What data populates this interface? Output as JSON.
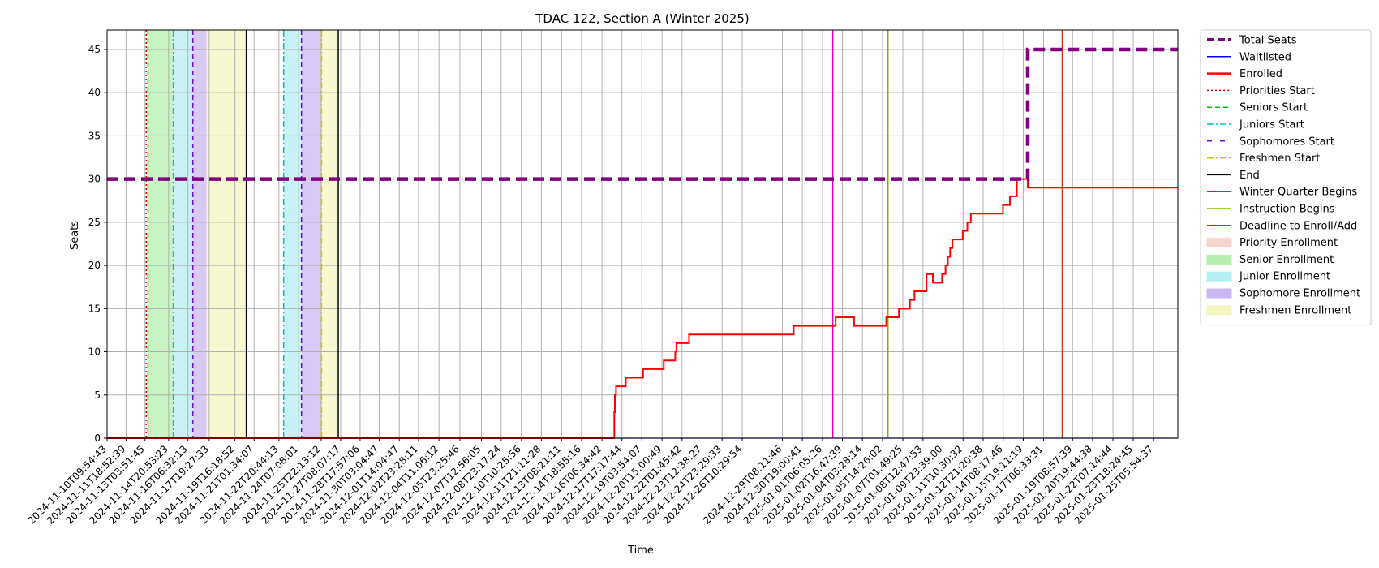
{
  "chart_data": {
    "type": "line",
    "title": "TDAC 122, Section A (Winter 2025)",
    "xlabel": "Time",
    "ylabel": "Seats",
    "xlim": [
      "2024-11-10T09:54:43",
      "2025-01-27T00:00:00"
    ],
    "ylim": [
      0,
      47.25
    ],
    "yticks": [
      0,
      5,
      10,
      15,
      20,
      25,
      30,
      35,
      40,
      45
    ],
    "xticks": [
      "2024-11-10T09:54:43",
      "2024-11-11T18:52:39",
      "2024-11-13T03:51:45",
      "2024-11-14T20:53:23",
      "2024-11-16T06:32:13",
      "2024-11-17T19:27:33",
      "2024-11-19T16:18:52",
      "2024-11-21T01:34:07",
      "2024-11-22T20:44:13",
      "2024-11-24T07:08:01",
      "2024-11-25T22:13:12",
      "2024-11-27T08:07:17",
      "2024-11-28T17:57:06",
      "2024-11-30T03:04:47",
      "2024-12-01T14:04:47",
      "2024-12-02T23:28:11",
      "2024-12-04T11:06:12",
      "2024-12-05T23:25:46",
      "2024-12-07T12:56:05",
      "2024-12-08T23:17:24",
      "2024-12-10T10:25:56",
      "2024-12-11T21:11:28",
      "2024-12-13T08:21:11",
      "2024-12-14T18:55:16",
      "2024-12-16T06:34:42",
      "2024-12-17T17:17:44",
      "2024-12-19T03:54:07",
      "2024-12-20T15:00:49",
      "2024-12-22T01:45:42",
      "2024-12-23T12:38:27",
      "2024-12-24T23:29:33",
      "2024-12-26T10:29:54",
      "2024-12-29T08:11:46",
      "2024-12-30T19:00:41",
      "2025-01-01T06:05:26",
      "2025-01-02T16:47:39",
      "2025-01-04T03:28:14",
      "2025-01-05T14:26:02",
      "2025-01-07T01:49:25",
      "2025-01-08T12:47:53",
      "2025-01-09T23:39:00",
      "2025-01-11T10:30:32",
      "2025-01-12T21:20:38",
      "2025-01-14T08:17:46",
      "2025-01-15T19:11:19",
      "2025-01-17T06:33:31",
      "2025-01-19T08:57:39",
      "2025-01-20T19:44:38",
      "2025-01-22T07:14:44",
      "2025-01-23T18:24:45",
      "2025-01-25T05:54:37"
    ],
    "grid": true,
    "legend_placement": "outside upper right",
    "series": [
      {
        "name": "Total Seats",
        "color": "#800080",
        "style": "dashed",
        "points": [
          [
            "2024-11-10T09:54:43",
            30
          ],
          [
            "2025-01-16T03:00:00",
            30
          ],
          [
            "2025-01-16T03:00:00",
            45
          ],
          [
            "2025-01-27T00:00:00",
            45
          ]
        ]
      },
      {
        "name": "Waitlisted",
        "color": "#0000ff",
        "style": "solid",
        "points": [
          [
            "2024-11-10T09:54:43",
            0
          ],
          [
            "2025-01-27T00:00:00",
            0
          ]
        ]
      },
      {
        "name": "Enrolled",
        "color": "#ff0000",
        "style": "solid",
        "points": [
          [
            "2024-11-10T09:54:43",
            0
          ],
          [
            "2024-12-17T04:00:00",
            0
          ],
          [
            "2024-12-17T04:00:00",
            3
          ],
          [
            "2024-12-17T05:00:00",
            3
          ],
          [
            "2024-12-17T05:00:00",
            5
          ],
          [
            "2024-12-17T07:00:00",
            5
          ],
          [
            "2024-12-17T07:00:00",
            6
          ],
          [
            "2024-12-18T00:00:00",
            6
          ],
          [
            "2024-12-18T00:00:00",
            7
          ],
          [
            "2024-12-19T06:00:00",
            7
          ],
          [
            "2024-12-19T06:00:00",
            8
          ],
          [
            "2024-12-20T18:00:00",
            8
          ],
          [
            "2024-12-20T18:00:00",
            9
          ],
          [
            "2024-12-21T14:00:00",
            9
          ],
          [
            "2024-12-21T14:00:00",
            10
          ],
          [
            "2024-12-21T16:00:00",
            10
          ],
          [
            "2024-12-21T16:00:00",
            11
          ],
          [
            "2024-12-22T14:00:00",
            11
          ],
          [
            "2024-12-22T14:00:00",
            12
          ],
          [
            "2024-12-30T04:00:00",
            12
          ],
          [
            "2024-12-30T04:00:00",
            13
          ],
          [
            "2025-01-02T05:00:00",
            13
          ],
          [
            "2025-01-02T05:00:00",
            14
          ],
          [
            "2025-01-03T13:00:00",
            14
          ],
          [
            "2025-01-03T13:00:00",
            13
          ],
          [
            "2025-01-05T21:00:00",
            13
          ],
          [
            "2025-01-05T21:00:00",
            14
          ],
          [
            "2025-01-06T19:00:00",
            14
          ],
          [
            "2025-01-06T19:00:00",
            15
          ],
          [
            "2025-01-07T14:00:00",
            15
          ],
          [
            "2025-01-07T14:00:00",
            16
          ],
          [
            "2025-01-07T22:00:00",
            16
          ],
          [
            "2025-01-07T22:00:00",
            17
          ],
          [
            "2025-01-08T19:00:00",
            17
          ],
          [
            "2025-01-08T19:00:00",
            19
          ],
          [
            "2025-01-09T06:00:00",
            19
          ],
          [
            "2025-01-09T06:00:00",
            18
          ],
          [
            "2025-01-09T22:00:00",
            18
          ],
          [
            "2025-01-09T22:00:00",
            19
          ],
          [
            "2025-01-10T04:00:00",
            19
          ],
          [
            "2025-01-10T04:00:00",
            20
          ],
          [
            "2025-01-10T08:00:00",
            20
          ],
          [
            "2025-01-10T08:00:00",
            21
          ],
          [
            "2025-01-10T12:00:00",
            21
          ],
          [
            "2025-01-10T12:00:00",
            22
          ],
          [
            "2025-01-10T16:00:00",
            22
          ],
          [
            "2025-01-10T16:00:00",
            23
          ],
          [
            "2025-01-11T10:00:00",
            23
          ],
          [
            "2025-01-11T10:00:00",
            24
          ],
          [
            "2025-01-11T18:00:00",
            24
          ],
          [
            "2025-01-11T18:00:00",
            25
          ],
          [
            "2025-01-12T00:00:00",
            25
          ],
          [
            "2025-01-12T00:00:00",
            26
          ],
          [
            "2025-01-14T08:00:00",
            26
          ],
          [
            "2025-01-14T08:00:00",
            27
          ],
          [
            "2025-01-14T20:00:00",
            27
          ],
          [
            "2025-01-14T20:00:00",
            28
          ],
          [
            "2025-01-15T08:00:00",
            28
          ],
          [
            "2025-01-15T08:00:00",
            30
          ],
          [
            "2025-01-16T03:00:00",
            30
          ],
          [
            "2025-01-16T03:00:00",
            29
          ],
          [
            "2025-01-27T00:00:00",
            29
          ]
        ]
      }
    ],
    "events": [
      {
        "name": "Priorities Start",
        "x": "2024-11-13T06:00:00",
        "color": "#ff0000",
        "style": "dotted"
      },
      {
        "name": "Seniors Start",
        "x": "2024-11-13T09:00:00",
        "color": "#00c000",
        "style": "dashed"
      },
      {
        "name": "Juniors Start",
        "x": "2024-11-15T05:00:00",
        "color": "#00bfbf",
        "style": "dashdot"
      },
      {
        "name": "Sophomores Start",
        "x": "2024-11-16T15:00:00",
        "color": "#6a0dcc",
        "style": "dashed"
      },
      {
        "name": "End",
        "x": "2024-11-20T12:00:00",
        "color": "#000000",
        "style": "solid"
      },
      {
        "name": "Juniors Start",
        "x": "2024-11-23T05:00:00",
        "color": "#00bfbf",
        "style": "dashdot"
      },
      {
        "name": "Sophomores Start",
        "x": "2024-11-24T12:00:00",
        "color": "#6a0dcc",
        "style": "dashed"
      },
      {
        "name": "Freshmen Start",
        "x": "2024-11-25T23:00:00",
        "color": "#d4c000",
        "style": "dashdot"
      },
      {
        "name": "End",
        "x": "2024-11-27T04:00:00",
        "color": "#000000",
        "style": "solid"
      },
      {
        "name": "Winter Quarter Begins",
        "x": "2025-01-02T00:00:00",
        "color": "#e000c0",
        "style": "solid"
      },
      {
        "name": "Instruction Begins",
        "x": "2025-01-06T00:00:00",
        "color": "#7cb800",
        "style": "solid"
      },
      {
        "name": "Deadline to Enroll/Add",
        "x": "2025-01-18T15:00:00",
        "color": "#d43000",
        "style": "solid"
      }
    ],
    "periods": [
      {
        "name": "Senior Enrollment",
        "start": "2024-11-13T09:00:00",
        "end": "2024-11-15T05:00:00",
        "color": "#b5f0b0"
      },
      {
        "name": "Junior Enrollment",
        "start": "2024-11-15T05:00:00",
        "end": "2024-11-16T15:00:00",
        "color": "#b8eef2"
      },
      {
        "name": "Sophomore Enrollment",
        "start": "2024-11-16T15:00:00",
        "end": "2024-11-17T15:00:00",
        "color": "#cbb7f2"
      },
      {
        "name": "Freshmen Enrollment",
        "start": "2024-11-17T15:00:00",
        "end": "2024-11-20T12:00:00",
        "color": "#f5f5c0"
      },
      {
        "name": "Junior Enrollment",
        "start": "2024-11-23T05:00:00",
        "end": "2024-11-24T12:00:00",
        "color": "#b8eef2"
      },
      {
        "name": "Sophomore Enrollment",
        "start": "2024-11-24T12:00:00",
        "end": "2024-11-25T23:00:00",
        "color": "#cbb7f2"
      },
      {
        "name": "Freshmen Enrollment",
        "start": "2024-11-25T23:00:00",
        "end": "2024-11-27T04:00:00",
        "color": "#f5f5c0"
      }
    ],
    "legend": [
      {
        "label": "Total Seats",
        "kind": "line",
        "color": "#800080",
        "style": "dashed-thick"
      },
      {
        "label": "Waitlisted",
        "kind": "line",
        "color": "#0000ff",
        "style": "solid"
      },
      {
        "label": "Enrolled",
        "kind": "line",
        "color": "#ff0000",
        "style": "solid-thick"
      },
      {
        "label": "Priorities Start",
        "kind": "line",
        "color": "#ff0000",
        "style": "dotted"
      },
      {
        "label": "Seniors Start",
        "kind": "line",
        "color": "#00c000",
        "style": "dashed"
      },
      {
        "label": "Juniors Start",
        "kind": "line",
        "color": "#00bfbf",
        "style": "dashdot"
      },
      {
        "label": "Sophomores Start",
        "kind": "line",
        "color": "#6a0dcc",
        "style": "dashed-sparse"
      },
      {
        "label": "Freshmen Start",
        "kind": "line",
        "color": "#d4c000",
        "style": "dashdot"
      },
      {
        "label": "End",
        "kind": "line",
        "color": "#000000",
        "style": "solid"
      },
      {
        "label": "Winter Quarter Begins",
        "kind": "line",
        "color": "#e000c0",
        "style": "solid"
      },
      {
        "label": "Instruction Begins",
        "kind": "line",
        "color": "#7cb800",
        "style": "solid"
      },
      {
        "label": "Deadline to Enroll/Add",
        "kind": "line",
        "color": "#d43000",
        "style": "solid"
      },
      {
        "label": "Priority Enrollment",
        "kind": "patch",
        "color": "#f8d5cc"
      },
      {
        "label": "Senior Enrollment",
        "kind": "patch",
        "color": "#b5f0b0"
      },
      {
        "label": "Junior Enrollment",
        "kind": "patch",
        "color": "#b8eef2"
      },
      {
        "label": "Sophomore Enrollment",
        "kind": "patch",
        "color": "#cbb7f2"
      },
      {
        "label": "Freshmen Enrollment",
        "kind": "patch",
        "color": "#f5f5c0"
      }
    ]
  }
}
